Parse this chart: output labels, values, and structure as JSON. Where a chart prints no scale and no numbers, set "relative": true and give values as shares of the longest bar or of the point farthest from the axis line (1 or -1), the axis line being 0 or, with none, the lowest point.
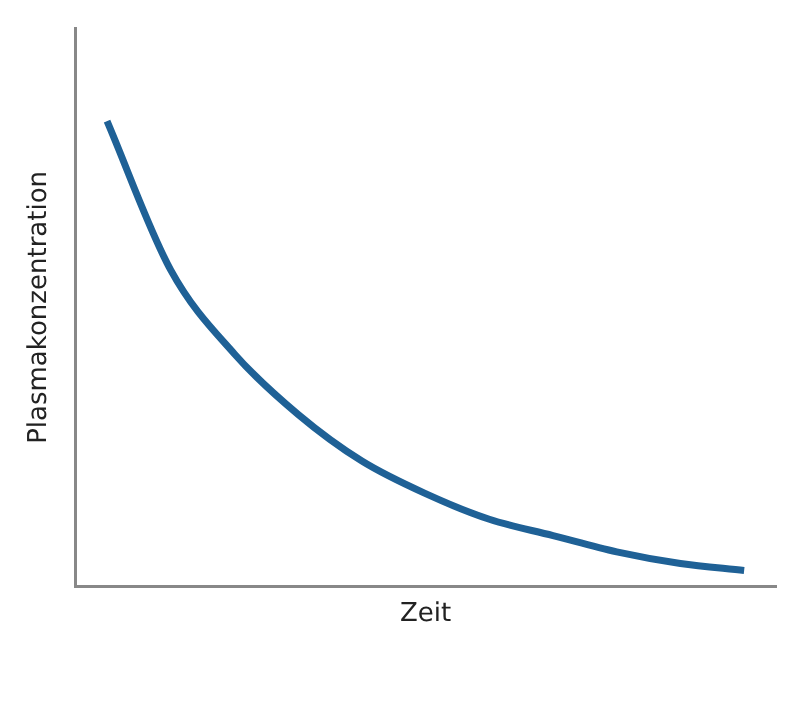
{
  "chart_data": {
    "type": "line",
    "relative": true,
    "xlabel": "Zeit",
    "ylabel": "Plasmakonzentration",
    "categories": [
      null,
      null,
      null,
      null,
      null,
      null,
      null,
      null,
      null,
      null,
      null
    ],
    "series": [
      {
        "color": "#1f6196",
        "values": [
          1,
          0.68,
          0.5,
          0.37,
          0.27,
          0.2,
          0.145,
          0.11,
          0.075,
          0.05,
          0.035
        ]
      }
    ],
    "marker": "none",
    "line_style": "solid",
    "grid": false,
    "legend": false
  }
}
